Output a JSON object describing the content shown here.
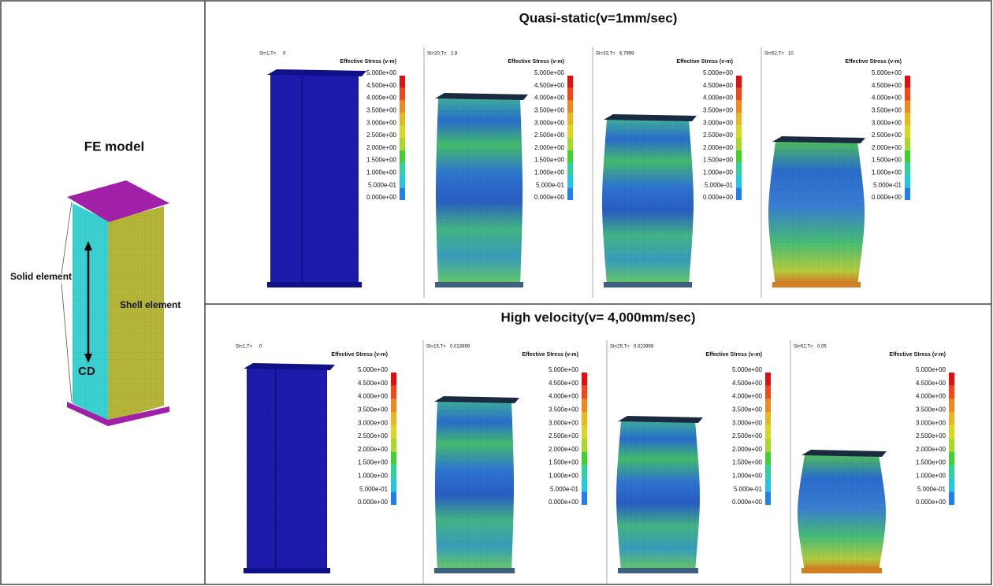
{
  "fe_model": {
    "title": "FE model",
    "solid_label": "Solid element",
    "shell_label": "Shell element",
    "direction_label": "CD"
  },
  "legend": {
    "title": "Effective Stress (v-m)",
    "values": [
      "5.000e+00",
      "4.500e+00",
      "4.000e+00",
      "3.500e+00",
      "3.000e+00",
      "2.500e+00",
      "2.000e+00",
      "1.500e+00",
      "1.000e+00",
      "5.000e-01",
      "0.000e+00"
    ]
  },
  "rows": [
    {
      "title": "Quasi-static(v=1mm/sec)",
      "panels": [
        {
          "state": "St=1,T=",
          "time": "0"
        },
        {
          "state": "St=20,T=",
          "time": "2.8"
        },
        {
          "state": "St=33,T=",
          "time": "6.7999"
        },
        {
          "state": "St=52,T=",
          "time": "10"
        }
      ]
    },
    {
      "title": "High velocity(v= 4,000mm/sec)",
      "panels": [
        {
          "state": "St=1,T=",
          "time": "0"
        },
        {
          "state": "St=15,T=",
          "time": "0.013999"
        },
        {
          "state": "St=25,T=",
          "time": "0.023999"
        },
        {
          "state": "St=52,T=",
          "time": "0.05"
        }
      ]
    }
  ]
}
